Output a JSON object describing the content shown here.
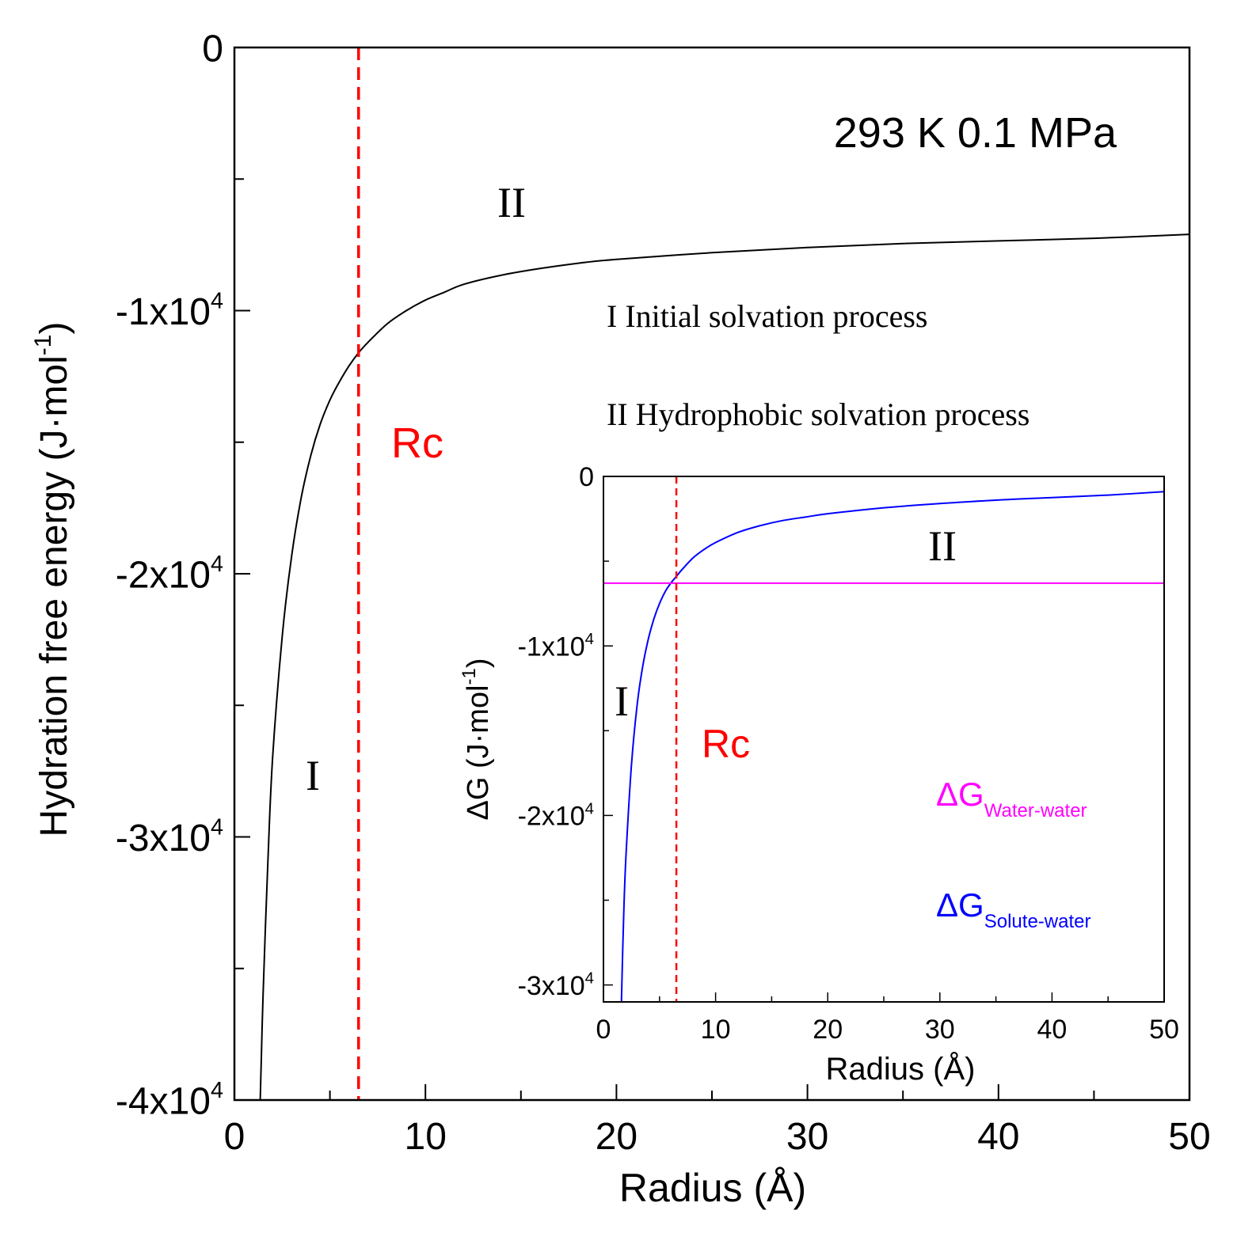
{
  "chart_data": [
    {
      "type": "line",
      "panel": "main",
      "xlabel": "Radius (Å)",
      "ylabel_main": "Hydration free energy (J·mol",
      "ylabel_sup": "-1",
      "ylabel_close": ")",
      "xlim": [
        0,
        50
      ],
      "ylim": [
        -40000,
        0
      ],
      "x_ticks": [
        {
          "value": 0,
          "label": "0"
        },
        {
          "value": 10,
          "label": "10"
        },
        {
          "value": 20,
          "label": "20"
        },
        {
          "value": 30,
          "label": "30"
        },
        {
          "value": 40,
          "label": "40"
        },
        {
          "value": 50,
          "label": "50"
        }
      ],
      "x_minor_ticks": [
        5,
        15,
        25,
        35,
        45
      ],
      "y_ticks": [
        {
          "value": 0,
          "mant": "0",
          "sup": ""
        },
        {
          "value": -10000,
          "mant": "-1x10",
          "sup": "4"
        },
        {
          "value": -20000,
          "mant": "-2x10",
          "sup": "4"
        },
        {
          "value": -30000,
          "mant": "-3x10",
          "sup": "4"
        },
        {
          "value": -40000,
          "mant": "-4x10",
          "sup": "4"
        }
      ],
      "y_minor_ticks": [
        -5000,
        -15000,
        -25000,
        -35000
      ],
      "series": [
        {
          "name": "Hydration free energy",
          "color": "#000000",
          "x": [
            1.35,
            1.5,
            1.75,
            2.0,
            2.5,
            3.0,
            3.5,
            4.0,
            4.5,
            5.0,
            5.5,
            6.0,
            6.5,
            7.0,
            8.0,
            9.0,
            10.0,
            11.0,
            12.0,
            14.0,
            16.0,
            18.0,
            20.0,
            25.0,
            30.0,
            35.0,
            40.0,
            45.0,
            50.0
          ],
          "y": [
            -40000,
            -36000,
            -31000,
            -27000,
            -22400,
            -19300,
            -17100,
            -15500,
            -14300,
            -13400,
            -12700,
            -12100,
            -11600,
            -11200,
            -10500,
            -10000,
            -9600,
            -9300,
            -9000,
            -8650,
            -8400,
            -8200,
            -8050,
            -7800,
            -7600,
            -7450,
            -7350,
            -7250,
            -7100
          ]
        }
      ],
      "vline": {
        "x": 6.5,
        "color": "#ff0000",
        "style": "dashed",
        "label": "Rc"
      },
      "annotations": {
        "condition": "293 K  0.1 MPa",
        "region_I": "I",
        "region_II": "II",
        "legend_I": "I  Initial solvation process",
        "legend_II": "II Hydrophobic solvation process"
      }
    },
    {
      "type": "line",
      "panel": "inset",
      "xlabel": "Radius (Å)",
      "ylabel_main": "ΔG (J·mol",
      "ylabel_sup": "-1",
      "ylabel_close": ")",
      "xlim": [
        0,
        50
      ],
      "ylim": [
        -31000,
        0
      ],
      "x_ticks": [
        {
          "value": 0,
          "label": "0"
        },
        {
          "value": 10,
          "label": "10"
        },
        {
          "value": 20,
          "label": "20"
        },
        {
          "value": 30,
          "label": "30"
        },
        {
          "value": 40,
          "label": "40"
        },
        {
          "value": 50,
          "label": "50"
        }
      ],
      "x_minor_ticks": [
        5,
        15,
        25,
        35,
        45
      ],
      "y_ticks": [
        {
          "value": 0,
          "mant": "0",
          "sup": ""
        },
        {
          "value": -10000,
          "mant": "-1x10",
          "sup": "4"
        },
        {
          "value": -20000,
          "mant": "-2x10",
          "sup": "4"
        },
        {
          "value": -30000,
          "mant": "-3x10",
          "sup": "4"
        }
      ],
      "y_minor_ticks": [
        -5000,
        -15000,
        -25000
      ],
      "series": [
        {
          "name": "ΔG Solute-water",
          "legend_main": "ΔG",
          "legend_sub": "Solute-water",
          "color": "#0000ff",
          "x": [
            1.6,
            1.8,
            2.0,
            2.5,
            3.0,
            3.5,
            4.0,
            4.5,
            5.0,
            5.5,
            6.0,
            6.5,
            7.0,
            8.0,
            9.0,
            10.0,
            12.0,
            14.0,
            16.0,
            18.0,
            20.0,
            25.0,
            30.0,
            35.0,
            40.0,
            45.0,
            50.0
          ],
          "y": [
            -31000,
            -26000,
            -22500,
            -17000,
            -13500,
            -11200,
            -9600,
            -8400,
            -7500,
            -6800,
            -6300,
            -5900,
            -5500,
            -4800,
            -4300,
            -3900,
            -3300,
            -2900,
            -2600,
            -2400,
            -2200,
            -1850,
            -1600,
            -1400,
            -1250,
            -1100,
            -900
          ]
        },
        {
          "name": "ΔG Water-water",
          "legend_main": "ΔG",
          "legend_sub": "Water-water",
          "color": "#ff00ff",
          "x": [
            0,
            50
          ],
          "y": [
            -6300,
            -6300
          ]
        }
      ],
      "vline": {
        "x": 6.5,
        "color": "#ff0000",
        "style": "dashed",
        "label": "Rc"
      },
      "annotations": {
        "region_I": "I",
        "region_II": "II"
      }
    }
  ]
}
